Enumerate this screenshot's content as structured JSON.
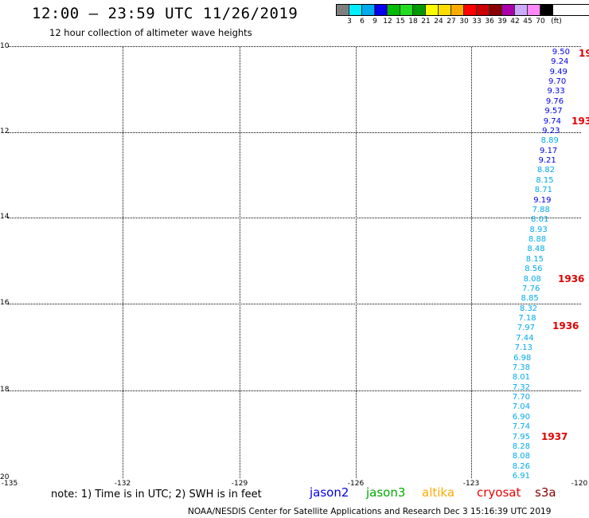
{
  "title": "12:00 — 23:59 UTC 11/26/2019",
  "subtitle": "12 hour collection of altimeter wave heights",
  "legend": {
    "colors": [
      "#7f7f7f",
      "#00eeff",
      "#00aaee",
      "#0000ee",
      "#00bb00",
      "#22dd22",
      "#009900",
      "#ffff00",
      "#ffdd00",
      "#ffaa00",
      "#ff0000",
      "#cc0000",
      "#880000",
      "#aa00aa",
      "#ccaaff",
      "#ff88ff",
      "#000000"
    ],
    "labels": [
      "3",
      "6",
      "9",
      "12",
      "15",
      "18",
      "21",
      "24",
      "27",
      "30",
      "33",
      "36",
      "39",
      "42",
      "45",
      "70",
      "(ft)"
    ]
  },
  "map": {
    "lat_labels": [
      "10",
      "12",
      "14",
      "16",
      "18",
      "20"
    ],
    "lon_labels": [
      "-135",
      "-132",
      "-129",
      "-126",
      "-123",
      "-120"
    ]
  },
  "observations": [
    {
      "v": "9.50",
      "c": "#0000ee"
    },
    {
      "v": "9.24",
      "c": "#0000ee"
    },
    {
      "v": "9.49",
      "c": "#0000ee"
    },
    {
      "v": "9.70",
      "c": "#0000ee"
    },
    {
      "v": "9.33",
      "c": "#0000ee"
    },
    {
      "v": "9.76",
      "c": "#0000ee"
    },
    {
      "v": "9.57",
      "c": "#0000ee"
    },
    {
      "v": "9.74",
      "c": "#0000ee"
    },
    {
      "v": "9.23",
      "c": "#0000ee"
    },
    {
      "v": "8.89",
      "c": "#00aaee"
    },
    {
      "v": "9.17",
      "c": "#0000ee"
    },
    {
      "v": "9.21",
      "c": "#0000ee"
    },
    {
      "v": "8.82",
      "c": "#00aaee"
    },
    {
      "v": "8.15",
      "c": "#00aaee"
    },
    {
      "v": "8.71",
      "c": "#00aaee"
    },
    {
      "v": "9.19",
      "c": "#0000ee"
    },
    {
      "v": "7.88",
      "c": "#00aaee"
    },
    {
      "v": "8.01",
      "c": "#00aaee"
    },
    {
      "v": "8.93",
      "c": "#00aaee"
    },
    {
      "v": "8.88",
      "c": "#00aaee"
    },
    {
      "v": "8.48",
      "c": "#00aaee"
    },
    {
      "v": "8.15",
      "c": "#00aaee"
    },
    {
      "v": "8.56",
      "c": "#00aaee"
    },
    {
      "v": "8.08",
      "c": "#00aaee"
    },
    {
      "v": "7.76",
      "c": "#00aaee"
    },
    {
      "v": "8.85",
      "c": "#00aaee"
    },
    {
      "v": "8.32",
      "c": "#00aaee"
    },
    {
      "v": "7.18",
      "c": "#00aaee"
    },
    {
      "v": "7.97",
      "c": "#00aaee"
    },
    {
      "v": "7.44",
      "c": "#00aaee"
    },
    {
      "v": "7.13",
      "c": "#00aaee"
    },
    {
      "v": "6.98",
      "c": "#00aaee"
    },
    {
      "v": "7.38",
      "c": "#00aaee"
    },
    {
      "v": "8.01",
      "c": "#00aaee"
    },
    {
      "v": "7.32",
      "c": "#00aaee"
    },
    {
      "v": "7.70",
      "c": "#00aaee"
    },
    {
      "v": "7.04",
      "c": "#00aaee"
    },
    {
      "v": "6.90",
      "c": "#00aaee"
    },
    {
      "v": "7.74",
      "c": "#00aaee"
    },
    {
      "v": "7.95",
      "c": "#00aaee"
    },
    {
      "v": "8.28",
      "c": "#00aaee"
    },
    {
      "v": "8.08",
      "c": "#00aaee"
    },
    {
      "v": "8.26",
      "c": "#00aaee"
    },
    {
      "v": "6.91",
      "c": "#00aaee"
    }
  ],
  "timestamps": [
    {
      "text": "19"
    },
    {
      "text": "193"
    },
    {
      "text": "1936"
    },
    {
      "text": "1936"
    },
    {
      "text": "1937"
    }
  ],
  "footer": {
    "note": "note: 1) Time is in UTC; 2) SWH is in feet",
    "satellites": [
      {
        "name": "jason2",
        "color": "#0000ee"
      },
      {
        "name": "jason3",
        "color": "#00aa00"
      },
      {
        "name": "altika",
        "color": "#ffaa00"
      },
      {
        "name": "cryosat",
        "color": "#ee0000"
      },
      {
        "name": "s3a",
        "color": "#880000"
      }
    ],
    "credit": "NOAA/NESDIS Center for Satellite Applications and Research    Dec  3 15:16:39 UTC 2019"
  }
}
